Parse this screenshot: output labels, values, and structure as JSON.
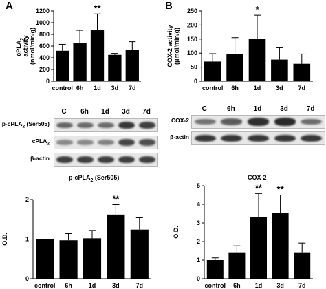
{
  "panels": {
    "a_letter": "A",
    "b_letter": "B"
  },
  "chart_data": [
    {
      "id": "cpla2-activity",
      "type": "bar",
      "categories": [
        "control",
        "6h",
        "1d",
        "3d",
        "7d"
      ],
      "values": [
        520,
        650,
        880,
        450,
        535
      ],
      "errors": [
        110,
        220,
        270,
        25,
        140
      ],
      "significance": [
        "",
        "",
        "**",
        "",
        ""
      ],
      "ylim": [
        0,
        1200
      ],
      "yticks": [
        0,
        200,
        400,
        600,
        800,
        1000,
        1200
      ],
      "ylabel_lines": [
        "cPLA",
        "activity",
        "(nmol/min/g)"
      ],
      "ylabel_sub": "2",
      "title": "",
      "xlabel": "",
      "grid": false,
      "bar_color": "#000000"
    },
    {
      "id": "cox2-activity",
      "type": "bar",
      "categories": [
        "control",
        "6h",
        "1d",
        "3d",
        "7d"
      ],
      "values": [
        70,
        97,
        150,
        77,
        62
      ],
      "errors": [
        28,
        58,
        85,
        42,
        35
      ],
      "significance": [
        "",
        "",
        "*",
        "",
        ""
      ],
      "ylim": [
        0,
        250
      ],
      "yticks": [
        0,
        50,
        100,
        150,
        200,
        250
      ],
      "ylabel_lines": [
        "COX-2 activity",
        "(μmol/min/g)"
      ],
      "title": "",
      "xlabel": "",
      "grid": false,
      "bar_color": "#000000"
    },
    {
      "id": "p-cpla2-od",
      "type": "bar",
      "categories": [
        "control",
        "6h",
        "1d",
        "3d",
        "7d"
      ],
      "values": [
        1.0,
        0.97,
        1.02,
        1.62,
        1.24
      ],
      "errors": [
        0.0,
        0.17,
        0.2,
        0.25,
        0.3
      ],
      "significance": [
        "",
        "",
        "",
        "**",
        ""
      ],
      "ylim": [
        0,
        2
      ],
      "yticks": [
        0,
        1,
        2
      ],
      "ylabel_lines": [
        "O.D."
      ],
      "title": "p-cPLA",
      "title_sub": "2",
      "title_suffix": " (Ser505)",
      "xlabel": "",
      "grid": false,
      "bar_color": "#000000"
    },
    {
      "id": "cox2-od",
      "type": "bar",
      "categories": [
        "control",
        "6h",
        "1d",
        "3d",
        "7d"
      ],
      "values": [
        1.0,
        1.42,
        3.33,
        3.55,
        1.42
      ],
      "errors": [
        0.12,
        0.35,
        1.25,
        0.95,
        0.5
      ],
      "significance": [
        "",
        "",
        "**",
        "**",
        ""
      ],
      "ylim": [
        0,
        5
      ],
      "yticks": [
        0,
        1,
        2,
        3,
        4,
        5
      ],
      "ylabel_lines": [
        "O.D."
      ],
      "title": "COX-2",
      "xlabel": "",
      "grid": false,
      "bar_color": "#000000"
    }
  ],
  "blots": {
    "left": {
      "lanes": [
        "C",
        "6h",
        "1d",
        "3d",
        "7d"
      ],
      "rows": [
        {
          "label": "p-cPLA",
          "sub": "2",
          "suffix": " (Ser505)",
          "intensity": [
            0.55,
            0.5,
            0.5,
            0.85,
            0.8
          ]
        },
        {
          "label": "cPLA",
          "sub": "2",
          "suffix": "",
          "intensity": [
            0.3,
            0.3,
            0.35,
            0.75,
            0.7
          ]
        },
        {
          "label": "β-actin",
          "sub": "",
          "suffix": "",
          "intensity": [
            0.8,
            0.8,
            0.8,
            0.8,
            0.8
          ]
        }
      ]
    },
    "right": {
      "lanes": [
        "C",
        "6h",
        "1d",
        "3d",
        "7d"
      ],
      "rows": [
        {
          "label": "COX-2",
          "sub": "",
          "suffix": "",
          "intensity": [
            0.45,
            0.6,
            0.9,
            0.95,
            0.5
          ]
        },
        {
          "label": "β-actin",
          "sub": "",
          "suffix": "",
          "intensity": [
            0.85,
            0.85,
            0.85,
            0.85,
            0.85
          ]
        }
      ]
    }
  }
}
